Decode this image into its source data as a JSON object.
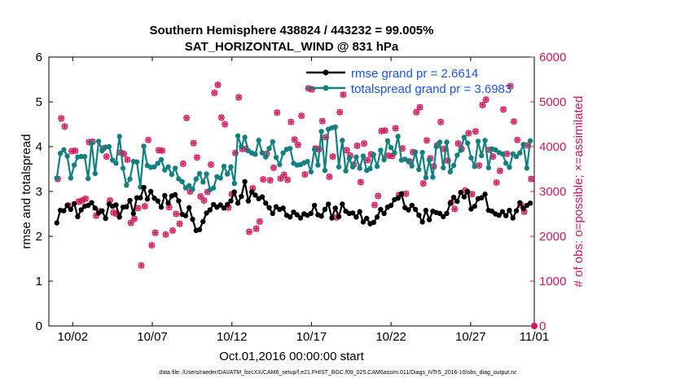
{
  "window": {
    "title_line1": "Southern Hemisphere 438824 / 443232 = 99.005%",
    "title_line2": "SAT_HORIZONTAL_WIND @ 831 hPa"
  },
  "colors": {
    "rmse": "#000000",
    "spread": "#128080",
    "obs": "#d2155a",
    "legend_text": "#1a55e0"
  },
  "chart_data": {
    "type": "line",
    "title": "Southern Hemisphere 438824 / 443232 = 99.005%",
    "subtitle": "SAT_HORIZONTAL_WIND @ 831 hPa",
    "xlabel": "Oct.01,2016 00:00:00 start",
    "ylabel": "rmse and totalspread",
    "ylabel_right": "# of obs: o=possible; ×=assimilated",
    "footer": "data file: /Users/raeder/DAI/ATM_forcXX/CAM6_setup/f.e21.FHIST_BGC.f09_025.CAM6assim.011/Diags_NTrS_2016-10/obs_diag_output.nc",
    "x_range": [
      0.5,
      31.0
    ],
    "ylim": [
      0,
      6
    ],
    "ylim_right": [
      0,
      6000
    ],
    "x_ticks": [
      {
        "x": 2,
        "label": "10/02"
      },
      {
        "x": 7,
        "label": "10/07"
      },
      {
        "x": 12,
        "label": "10/12"
      },
      {
        "x": 17,
        "label": "10/17"
      },
      {
        "x": 22,
        "label": "10/22"
      },
      {
        "x": 27,
        "label": "10/27"
      },
      {
        "x": 31,
        "label": "11/01"
      }
    ],
    "y_ticks": [
      "0",
      "1",
      "2",
      "3",
      "4",
      "5",
      "6"
    ],
    "y_ticks_right": [
      "0",
      "1000",
      "2000",
      "3000",
      "4000",
      "5000",
      "6000"
    ],
    "grid": false,
    "legend_position": "top-right",
    "series": [
      {
        "name": "rmse grand pr = 2.6614",
        "axis": "left",
        "values": [
          2.3,
          2.58,
          2.57,
          2.69,
          2.6,
          2.73,
          2.44,
          2.59,
          2.67,
          2.69,
          2.75,
          2.63,
          2.52,
          2.57,
          2.4,
          2.72,
          2.67,
          2.7,
          2.43,
          2.65,
          2.66,
          2.8,
          2.51,
          2.86,
          2.86,
          3.09,
          2.83,
          3.0,
          2.85,
          2.79,
          2.65,
          2.91,
          2.74,
          2.9,
          2.93,
          2.79,
          2.49,
          2.46,
          2.64,
          2.38,
          2.13,
          2.15,
          2.33,
          2.52,
          2.59,
          2.71,
          2.65,
          2.7,
          2.63,
          2.71,
          2.79,
          2.99,
          2.74,
          2.89,
          3.22,
          2.79,
          2.99,
          2.92,
          2.84,
          2.88,
          2.74,
          2.64,
          2.51,
          2.66,
          2.6,
          2.63,
          2.47,
          2.43,
          2.54,
          2.48,
          2.41,
          2.5,
          2.47,
          2.51,
          2.69,
          2.48,
          2.45,
          2.6,
          2.72,
          2.41,
          2.63,
          2.44,
          2.72,
          2.56,
          2.51,
          2.52,
          2.43,
          2.55,
          2.32,
          2.4,
          2.28,
          2.31,
          2.43,
          2.6,
          2.51,
          2.65,
          2.69,
          2.82,
          2.85,
          2.95,
          2.64,
          2.59,
          2.69,
          2.6,
          2.47,
          2.32,
          2.58,
          2.37,
          2.56,
          2.53,
          2.51,
          2.44,
          2.51,
          2.74,
          2.87,
          2.78,
          2.98,
          2.88,
          3.0,
          2.61,
          2.67,
          2.84,
          2.86,
          2.94,
          2.58,
          2.56,
          2.5,
          2.47,
          2.55,
          2.46,
          2.58,
          2.41,
          2.57,
          2.75,
          2.62,
          2.69,
          2.74
        ]
      },
      {
        "name": "totalspread grand pr = 3.6983",
        "axis": "left",
        "values": [
          3.3,
          3.85,
          3.93,
          3.79,
          3.3,
          3.59,
          3.77,
          3.78,
          3.78,
          3.29,
          4.08,
          3.4,
          4.12,
          3.91,
          3.99,
          4.0,
          3.7,
          3.63,
          4.23,
          3.52,
          3.14,
          3.28,
          3.67,
          3.66,
          3.1,
          4.01,
          3.58,
          3.54,
          3.55,
          3.63,
          3.71,
          3.48,
          3.55,
          3.38,
          3.52,
          3.28,
          3.22,
          3.08,
          3.13,
          3.05,
          3.28,
          3.4,
          3.21,
          3.39,
          3.04,
          3.08,
          3.33,
          3.3,
          3.56,
          3.39,
          3.55,
          3.18,
          4.24,
          4.0,
          4.21,
          3.91,
          3.86,
          3.83,
          4.14,
          3.86,
          3.77,
          3.96,
          4.11,
          3.76,
          3.6,
          3.86,
          3.94,
          3.96,
          3.63,
          3.59,
          3.6,
          3.64,
          3.67,
          3.44,
          3.94,
          3.59,
          4.34,
          3.47,
          4.39,
          4.42,
          4.44,
          3.55,
          4.14,
          3.46,
          3.74,
          3.55,
          3.77,
          3.52,
          3.79,
          3.47,
          3.51,
          3.82,
          3.56,
          3.92,
          3.71,
          4.13,
          3.98,
          3.86,
          4.23,
          3.7,
          3.72,
          3.68,
          3.57,
          3.88,
          3.49,
          3.87,
          3.31,
          3.7,
          3.32,
          4.0,
          4.1,
          3.53,
          4.1,
          3.44,
          3.58,
          3.81,
          3.92,
          4.21,
          4.08,
          3.75,
          3.56,
          4.12,
          3.8,
          4.14,
          3.53,
          3.95,
          3.93,
          3.87,
          3.84,
          3.63,
          3.54,
          3.84,
          3.78,
          3.86,
          4.05,
          3.52,
          4.13
        ]
      },
      {
        "name": "# of obs",
        "axis": "right",
        "values": [
          3280,
          4630,
          4450,
          2690,
          3900,
          3910,
          2770,
          2800,
          2840,
          4100,
          4110,
          2460,
          2560,
          3960,
          3780,
          2800,
          2530,
          2500,
          3870,
          3840,
          3710,
          2300,
          2390,
          2630,
          1350,
          2670,
          4150,
          1800,
          2080,
          3920,
          3910,
          2040,
          2650,
          2130,
          2500,
          2280,
          3620,
          4640,
          3000,
          4080,
          3760,
          2890,
          2800,
          2990,
          3600,
          5200,
          5380,
          4650,
          4500,
          2640,
          2940,
          3860,
          5100,
          3950,
          3950,
          2100,
          3070,
          2170,
          2330,
          3270,
          3840,
          3250,
          3530,
          4760,
          3290,
          3370,
          3260,
          4550,
          4160,
          4040,
          4690,
          3380,
          5300,
          5280,
          3960,
          3940,
          4570,
          4210,
          3330,
          3780,
          2420,
          4770,
          5160,
          3920,
          3800,
          3600,
          4020,
          3210,
          4070,
          3700,
          3830,
          2700,
          2900,
          4350,
          4360,
          3800,
          3790,
          4410,
          2920,
          3960,
          2950,
          3670,
          3880,
          4770,
          4880,
          3180,
          4140,
          3740,
          3560,
          4030,
          4550,
          3950,
          3690,
          2750,
          2610,
          4070,
          3950,
          3020,
          4300,
          2940,
          4340,
          3580,
          4930,
          5050,
          3930,
          3780,
          3200,
          3460,
          4830,
          3840,
          5350,
          4560,
          4150,
          2700,
          2550,
          4030,
          3280
        ]
      }
    ]
  },
  "obs_end_marker": {
    "x": 31.0,
    "y": 0
  }
}
